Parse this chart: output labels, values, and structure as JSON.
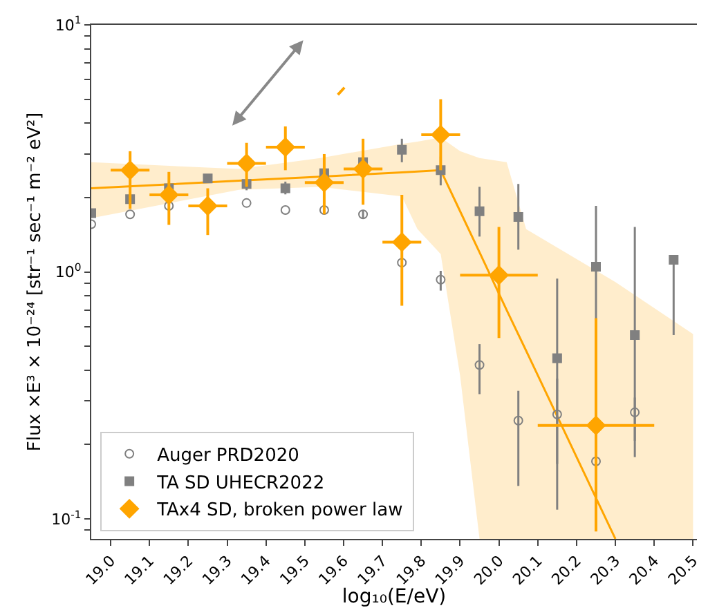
{
  "chart_data": {
    "type": "scatter",
    "xlabel": "log₁₀(E/eV)",
    "ylabel": "Flux ×E³ × 10⁻²⁴ [str⁻¹ sec⁻¹ m⁻² eV²]",
    "log": "y",
    "grid": false,
    "legend": "bottom left",
    "xlim": [
      18.95,
      20.51
    ],
    "ylim": [
      0.083,
      10
    ],
    "xticks": [
      {
        "value": 19,
        "label": "19.0"
      },
      {
        "value": 19.1,
        "label": "19.1"
      },
      {
        "value": 19.2,
        "label": "19.2"
      },
      {
        "value": 19.3,
        "label": "19.3"
      },
      {
        "value": 19.4,
        "label": "19.4"
      },
      {
        "value": 19.5,
        "label": "19.5"
      },
      {
        "value": 19.6,
        "label": "19.6"
      },
      {
        "value": 19.7,
        "label": "19.7"
      },
      {
        "value": 19.8,
        "label": "19.8"
      },
      {
        "value": 19.9,
        "label": "19.9"
      },
      {
        "value": 20,
        "label": "20.0"
      },
      {
        "value": 20.1,
        "label": "20.1"
      },
      {
        "value": 20.2,
        "label": "20.2"
      },
      {
        "value": 20.3,
        "label": "20.3"
      },
      {
        "value": 20.4,
        "label": "20.4"
      },
      {
        "value": 20.5,
        "label": "20.5"
      }
    ],
    "yticks": [
      {
        "value": 0.09,
        "label": null
      },
      {
        "value": 0.1,
        "label": "10$^{-1}$"
      },
      {
        "value": 0.2,
        "label": null
      },
      {
        "value": 0.3,
        "label": null
      },
      {
        "value": 0.4,
        "label": null
      },
      {
        "value": 0.5,
        "label": null
      },
      {
        "value": 0.6,
        "label": null
      },
      {
        "value": 0.7,
        "label": null
      },
      {
        "value": 0.8,
        "label": null
      },
      {
        "value": 0.9,
        "label": null
      },
      {
        "value": 1,
        "label": "10$^{0}$"
      },
      {
        "value": 2,
        "label": null
      },
      {
        "value": 3,
        "label": null
      },
      {
        "value": 4,
        "label": null
      },
      {
        "value": 5,
        "label": null
      },
      {
        "value": 6,
        "label": null
      },
      {
        "value": 7,
        "label": null
      },
      {
        "value": 8,
        "label": null
      },
      {
        "value": 9,
        "label": null
      },
      {
        "value": 10,
        "label": "10$^{1}$"
      }
    ],
    "series": [
      {
        "name": null,
        "type": "line",
        "color": "#ffa500",
        "x": [
          18.95,
          19.33,
          19.54,
          19.75,
          19.79,
          19.85,
          19.9,
          19.95,
          20.02,
          20.07,
          20.3,
          20.5
        ],
        "values": [
          2.18,
          2.34,
          2.43,
          2.53,
          2.55,
          2.58,
          1.76,
          1.2,
          0.7,
          0.48,
          0.083,
          null
        ],
        "lower": [
          1.65,
          2.15,
          2.21,
          2.02,
          1.49,
          1.18,
          0.38,
          0.083,
          0.083,
          0.083,
          0.083,
          0.083
        ],
        "upper": [
          2.78,
          2.61,
          2.89,
          3.3,
          3.37,
          3.5,
          3.08,
          2.89,
          2.78,
          1.49,
          0.91,
          0.56
        ]
      },
      {
        "name": "Auger PRD2020",
        "marker": "circle",
        "color": "#808080",
        "x": [
          18.95,
          19.05,
          19.15,
          19.25,
          19.35,
          19.45,
          19.55,
          19.65,
          19.75,
          19.85,
          19.95,
          20.05,
          20.15,
          20.25,
          20.35
        ],
        "values": [
          1.56,
          1.71,
          1.85,
          null,
          1.9,
          1.78,
          1.78,
          1.71,
          1.09,
          0.93,
          0.42,
          0.25,
          0.265,
          0.171,
          0.27
        ],
        "errors": [
          null,
          null,
          null,
          null,
          null,
          null,
          null,
          [
            1.65,
            1.77
          ],
          null,
          [
            0.84,
            1.01
          ],
          [
            0.32,
            0.51
          ],
          [
            0.136,
            0.33
          ],
          [
            0.109,
            0.37
          ],
          null,
          [
            0.178,
            0.31
          ]
        ]
      },
      {
        "name": "TA SD UHECR2022",
        "marker": "square",
        "color": "#808080",
        "x": [
          18.95,
          19.05,
          19.15,
          19.25,
          19.35,
          19.45,
          19.55,
          19.65,
          19.75,
          19.85,
          19.95,
          20.05,
          20.15,
          20.25,
          20.35,
          20.45
        ],
        "values": [
          1.73,
          1.97,
          2.18,
          2.39,
          2.27,
          2.18,
          2.51,
          2.78,
          3.12,
          2.58,
          1.76,
          1.67,
          0.447,
          1.05,
          0.555,
          1.12
        ],
        "errors": [
          null,
          [
            1.87,
            2.08
          ],
          null,
          null,
          [
            2.14,
            2.42
          ],
          [
            2.06,
            2.32
          ],
          null,
          null,
          [
            2.78,
            3.46
          ],
          [
            2.24,
            2.93
          ],
          [
            1.39,
            2.21
          ],
          [
            1.23,
            2.27
          ],
          [
            0.167,
            0.94
          ],
          [
            0.39,
            1.85
          ],
          [
            0.207,
            1.52
          ],
          [
            0.555,
            1.12
          ]
        ]
      },
      {
        "name": "TAx4 SD, broken power law",
        "marker": "diamond",
        "color": "#ffa500",
        "x": [
          19.05,
          19.15,
          19.25,
          19.35,
          19.45,
          19.55,
          19.65,
          19.75,
          19.85,
          20.0,
          20.25
        ],
        "values": [
          2.58,
          2.05,
          1.85,
          2.75,
          3.2,
          2.3,
          2.61,
          1.32,
          3.59,
          0.97,
          0.239
        ],
        "errors": [
          [
            1.8,
            3.08
          ],
          [
            1.55,
            2.54
          ],
          [
            1.41,
            2.18
          ],
          [
            2.21,
            3.33
          ],
          [
            2.58,
            3.88
          ],
          [
            1.71,
            3.0
          ],
          [
            1.87,
            3.46
          ],
          [
            0.73,
            2.05
          ],
          [
            2.58,
            5.0
          ],
          [
            0.54,
            1.52
          ],
          [
            0.089,
            0.65
          ]
        ],
        "xerrors": [
          0.05,
          0.05,
          0.05,
          0.05,
          0.05,
          0.05,
          0.05,
          0.05,
          0.05,
          0.1,
          0.15
        ]
      }
    ]
  }
}
